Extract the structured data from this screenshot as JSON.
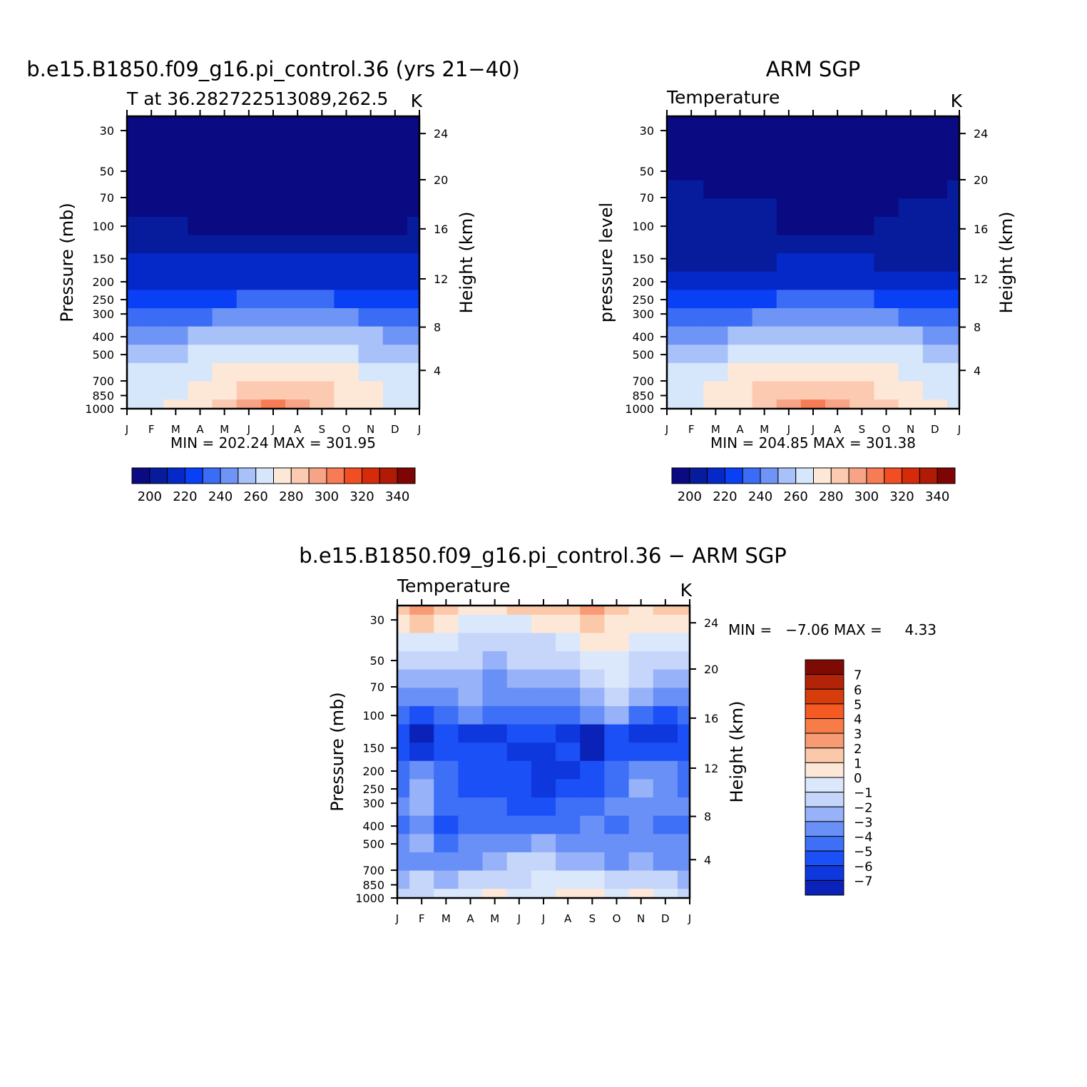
{
  "colors": {
    "abs_palette": [
      "#0a0a82",
      "#061c9c",
      "#0529c9",
      "#0a40f5",
      "#3a6cf5",
      "#6e94f6",
      "#a8c1f8",
      "#d6e6fb",
      "#fde8d8",
      "#fbcab0",
      "#f7a386",
      "#f77b55",
      "#f24e23",
      "#d52b0a",
      "#b11a05",
      "#7e0503"
    ],
    "diff_palette": [
      "#050b8c",
      "#0a22b8",
      "#0e38de",
      "#1c50f7",
      "#3e6ff7",
      "#6890f6",
      "#97b2f8",
      "#c6d6fa",
      "#dbe7fb",
      "#fde8d8",
      "#fbc9a9",
      "#f79b74",
      "#f77c48",
      "#f55a22",
      "#d53d0a",
      "#b32308",
      "#7e0b03"
    ]
  },
  "chart_data": [
    {
      "type": "heatmap",
      "title": "b.e15.B1850.f09_g16.pi_control.36 (yrs 21−40)",
      "subtitle_left": "T at 36.282722513089,262.5",
      "subtitle_right": "K",
      "ylabel": "Pressure (mb)",
      "ylabel_right": "Height (km)",
      "x_ticks": [
        "J",
        "F",
        "M",
        "A",
        "M",
        "J",
        "J",
        "A",
        "S",
        "O",
        "N",
        "D",
        "J"
      ],
      "y_ticks": [
        "30",
        "50",
        "70",
        "100",
        "150",
        "200",
        "250",
        "300",
        "400",
        "500",
        "700",
        "850",
        "1000"
      ],
      "y_ticks_right": [
        "24",
        "20",
        "16",
        "12",
        "8",
        "4"
      ],
      "stats": "MIN = 202.24 MAX = 301.95",
      "colorbar": {
        "orientation": "horizontal",
        "labels": [
          "200",
          "220",
          "240",
          "260",
          "280",
          "300",
          "320",
          "340"
        ]
      },
      "contour_levels": [
        215,
        225,
        235,
        245,
        255,
        265,
        275,
        285,
        292,
        297,
        300
      ],
      "values": [
        [
          208,
          208,
          208,
          208,
          207,
          205,
          204,
          204,
          204,
          205,
          207,
          208,
          208
        ],
        [
          209,
          208,
          208,
          208,
          207,
          206,
          205,
          205,
          205,
          206,
          207,
          208,
          209
        ],
        [
          210,
          209,
          210,
          209,
          209,
          209,
          209,
          210,
          210,
          209,
          210,
          210,
          210
        ],
        [
          211,
          210,
          211,
          212,
          213,
          213,
          213,
          213,
          212,
          212,
          212,
          212,
          211
        ],
        [
          212,
          212,
          212,
          213,
          213,
          213,
          213,
          213,
          213,
          213,
          213,
          213,
          212
        ],
        [
          214,
          214,
          214,
          214,
          214,
          213,
          213,
          213,
          213,
          213,
          213,
          213,
          214
        ],
        [
          217,
          216,
          215,
          212,
          211,
          210,
          210,
          210,
          210,
          210,
          211,
          213,
          217
        ],
        [
          221,
          220,
          219,
          217,
          216,
          216,
          216,
          216,
          216,
          216,
          217,
          219,
          221
        ],
        [
          225,
          225,
          225,
          225,
          226,
          226,
          226,
          226,
          225,
          225,
          225,
          225,
          225
        ],
        [
          230,
          230,
          230,
          231,
          232,
          233,
          233,
          233,
          232,
          232,
          231,
          230,
          230
        ],
        [
          240,
          240,
          241,
          242,
          244,
          246,
          247,
          247,
          245,
          243,
          242,
          240,
          240
        ],
        [
          251,
          251,
          252,
          254,
          256,
          258,
          260,
          260,
          258,
          255,
          253,
          252,
          251
        ],
        [
          263,
          263,
          264,
          266,
          268,
          270,
          272,
          271,
          270,
          267,
          265,
          264,
          263
        ],
        [
          272,
          272,
          273,
          275,
          278,
          280,
          282,
          281,
          279,
          276,
          274,
          273,
          272
        ],
        [
          278,
          279,
          281,
          284,
          287,
          290,
          291,
          290,
          288,
          285,
          282,
          280,
          278
        ],
        [
          280,
          281,
          284,
          287,
          291,
          294,
          296,
          295,
          292,
          288,
          285,
          282,
          280
        ],
        [
          281,
          282,
          286,
          289,
          293,
          297,
          300,
          298,
          294,
          290,
          286,
          283,
          281
        ]
      ]
    },
    {
      "type": "heatmap",
      "title": "ARM SGP",
      "subtitle_left": "Temperature",
      "subtitle_right": "K",
      "ylabel": "pressure level",
      "ylabel_right": "Height (km)",
      "x_ticks": [
        "J",
        "F",
        "M",
        "A",
        "M",
        "J",
        "J",
        "A",
        "S",
        "O",
        "N",
        "D",
        "J"
      ],
      "y_ticks": [
        "30",
        "50",
        "70",
        "100",
        "150",
        "200",
        "250",
        "300",
        "400",
        "500",
        "700",
        "850",
        "1000"
      ],
      "y_ticks_right": [
        "24",
        "20",
        "16",
        "12",
        "8",
        "4"
      ],
      "stats": "MIN = 204.85 MAX = 301.38",
      "colorbar": {
        "orientation": "horizontal",
        "labels": [
          "200",
          "220",
          "240",
          "260",
          "280",
          "300",
          "320",
          "340"
        ]
      },
      "contour_levels": [
        215,
        225,
        235,
        245,
        255,
        265,
        275,
        285,
        292,
        297,
        300
      ],
      "values": [
        [
          210,
          210,
          210,
          210,
          209,
          208,
          207,
          208,
          209,
          210,
          210,
          210,
          210
        ],
        [
          211,
          211,
          211,
          211,
          211,
          211,
          211,
          211,
          211,
          211,
          211,
          211,
          211
        ],
        [
          213,
          213,
          212,
          212,
          212,
          212,
          212,
          212,
          212,
          212,
          212,
          212,
          213
        ],
        [
          214,
          214,
          213,
          213,
          213,
          213,
          213,
          213,
          213,
          213,
          213,
          213,
          214
        ],
        [
          215,
          215,
          214,
          214,
          214,
          213,
          213,
          213,
          213,
          213,
          213,
          214,
          215
        ],
        [
          216,
          216,
          216,
          216,
          215,
          214,
          213,
          213,
          213,
          214,
          215,
          216,
          216
        ],
        [
          217,
          217,
          217,
          217,
          216,
          214,
          213,
          213,
          214,
          216,
          217,
          217,
          217
        ],
        [
          219,
          219,
          219,
          219,
          219,
          218,
          218,
          218,
          218,
          219,
          219,
          219,
          219
        ],
        [
          222,
          222,
          222,
          223,
          224,
          225,
          226,
          226,
          225,
          224,
          223,
          222,
          222
        ],
        [
          228,
          228,
          228,
          229,
          230,
          232,
          233,
          233,
          232,
          231,
          229,
          228,
          228
        ],
        [
          239,
          239,
          240,
          241,
          243,
          245,
          246,
          246,
          245,
          243,
          241,
          240,
          239
        ],
        [
          251,
          251,
          252,
          253,
          255,
          257,
          258,
          258,
          257,
          255,
          253,
          252,
          251
        ],
        [
          262,
          262,
          263,
          265,
          267,
          269,
          270,
          270,
          269,
          267,
          265,
          263,
          262
        ],
        [
          273,
          273,
          274,
          276,
          278,
          280,
          281,
          281,
          279,
          277,
          275,
          274,
          273
        ],
        [
          280,
          280,
          282,
          285,
          288,
          290,
          291,
          290,
          289,
          286,
          283,
          281,
          280
        ],
        [
          282,
          283,
          285,
          289,
          292,
          295,
          296,
          295,
          293,
          290,
          286,
          284,
          282
        ],
        [
          283,
          284,
          287,
          291,
          295,
          298,
          300,
          299,
          296,
          292,
          288,
          285,
          283
        ]
      ]
    },
    {
      "type": "heatmap",
      "title": "b.e15.B1850.f09_g16.pi_control.36 − ARM SGP",
      "subtitle_left": "Temperature",
      "subtitle_right": "K",
      "ylabel": "Pressure (mb)",
      "ylabel_right": "Height (km)",
      "x_ticks": [
        "J",
        "F",
        "M",
        "A",
        "M",
        "J",
        "J",
        "A",
        "S",
        "O",
        "N",
        "D",
        "J"
      ],
      "y_ticks": [
        "30",
        "50",
        "70",
        "100",
        "150",
        "200",
        "250",
        "300",
        "400",
        "500",
        "700",
        "850",
        "1000"
      ],
      "y_ticks_right": [
        "24",
        "20",
        "16",
        "12",
        "8",
        "4"
      ],
      "stats": "MIN =   −7.06 MAX =     4.33",
      "colorbar": {
        "orientation": "vertical",
        "labels": [
          "7",
          "6",
          "5",
          "4",
          "3",
          "2",
          "1",
          "0",
          "−1",
          "−2",
          "−3",
          "−4",
          "−5",
          "−6",
          "−7"
        ]
      },
      "contour_levels": [
        -7,
        -6,
        -5,
        -4,
        -3,
        -2,
        -1,
        0,
        1,
        2,
        3,
        4,
        5,
        6,
        7
      ],
      "values": [
        [
          2.5,
          3.2,
          2.5,
          1.0,
          1.5,
          2.0,
          2.0,
          2.5,
          3.5,
          2.5,
          1.5,
          2.5,
          2.5
        ],
        [
          1.5,
          2.0,
          1.2,
          0.2,
          0.5,
          0.8,
          1.0,
          1.5,
          2.5,
          1.5,
          1.0,
          1.5,
          1.5
        ],
        [
          0.5,
          0.5,
          0.2,
          -0.5,
          -0.5,
          -0.3,
          -0.2,
          0.3,
          1.5,
          1.2,
          0.5,
          0.2,
          0.5
        ],
        [
          -0.8,
          -0.5,
          -0.8,
          -1.0,
          -1.5,
          -1.0,
          -0.8,
          -0.5,
          0.5,
          0.8,
          -0.2,
          -0.5,
          -0.8
        ],
        [
          -1.5,
          -1.8,
          -1.6,
          -1.4,
          -2.2,
          -1.8,
          -1.5,
          -1.2,
          -0.5,
          0.2,
          -0.8,
          -1.5,
          -1.5
        ],
        [
          -2.5,
          -3.0,
          -2.5,
          -2.0,
          -2.8,
          -2.5,
          -2.5,
          -2.2,
          -1.2,
          -0.5,
          -2.0,
          -2.5,
          -2.5
        ],
        [
          -3.5,
          -4.2,
          -3.5,
          -3.0,
          -3.5,
          -3.5,
          -3.5,
          -3.2,
          -3.0,
          -2.0,
          -4.0,
          -4.5,
          -3.5
        ],
        [
          -4.5,
          -6.5,
          -4.8,
          -5.5,
          -5.5,
          -5.0,
          -5.0,
          -5.5,
          -6.2,
          -4.5,
          -5.5,
          -5.5,
          -4.5
        ],
        [
          -4.5,
          -5.5,
          -4.5,
          -5.0,
          -5.0,
          -5.5,
          -5.8,
          -5.0,
          -6.5,
          -4.5,
          -4.8,
          -4.8,
          -4.5
        ],
        [
          -3.5,
          -2.5,
          -4.0,
          -4.5,
          -4.5,
          -5.0,
          -5.5,
          -5.5,
          -5.0,
          -4.0,
          -2.5,
          -3.0,
          -3.5
        ],
        [
          -3.5,
          -1.5,
          -3.5,
          -4.5,
          -4.5,
          -4.5,
          -5.5,
          -4.5,
          -4.5,
          -3.5,
          -1.5,
          -2.5,
          -3.5
        ],
        [
          -3.0,
          -2.0,
          -3.5,
          -4.0,
          -4.0,
          -4.5,
          -4.5,
          -4.0,
          -3.8,
          -3.0,
          -2.5,
          -2.8,
          -3.0
        ],
        [
          -3.5,
          -2.5,
          -4.5,
          -4.0,
          -4.0,
          -4.0,
          -3.5,
          -3.5,
          -3.0,
          -3.5,
          -2.8,
          -3.8,
          -3.5
        ],
        [
          -2.5,
          -2.0,
          -3.5,
          -3.0,
          -2.5,
          -2.5,
          -2.0,
          -2.5,
          -2.5,
          -3.0,
          -2.5,
          -2.8,
          -2.5
        ],
        [
          -2.8,
          -2.5,
          -3.0,
          -2.5,
          -1.5,
          -1.0,
          -1.0,
          -1.2,
          -1.5,
          -2.5,
          -2.0,
          -2.2,
          -2.8
        ],
        [
          -1.5,
          -1.0,
          -1.5,
          -1.0,
          -0.5,
          -0.2,
          0.2,
          0.3,
          0.5,
          -0.5,
          -0.5,
          -1.0,
          -1.5
        ],
        [
          -0.5,
          -0.5,
          0.0,
          0.5,
          1.0,
          0.5,
          0.8,
          1.0,
          1.3,
          0.5,
          1.0,
          0.5,
          -0.5
        ]
      ]
    }
  ]
}
